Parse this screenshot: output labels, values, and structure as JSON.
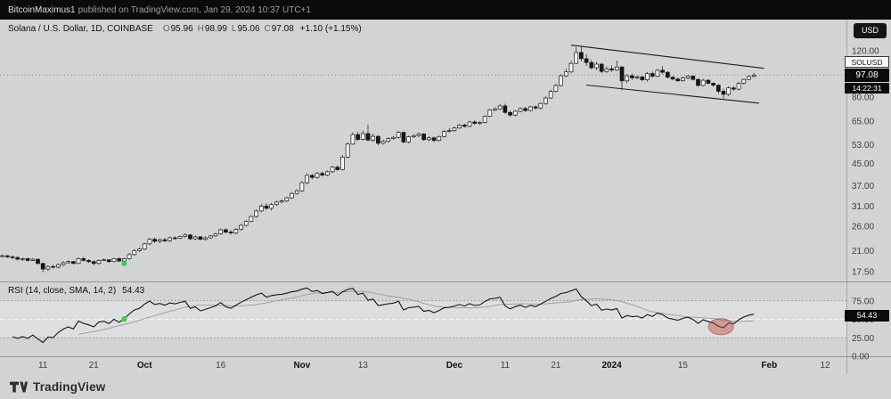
{
  "topbar": {
    "user": "BitcoinMaximus1",
    "rest": " published on TradingView.com, Jan 29, 2024 10:37 UTC+1",
    "currency_button": "USD"
  },
  "legend": {
    "title": "Solana / U.S. Dollar, 1D, COINBASE",
    "o": "O",
    "o_v": "95.96",
    "h": "H",
    "h_v": "98.99",
    "l": "L",
    "l_v": "95.06",
    "c": "C",
    "c_v": "97.08",
    "change": "+1.10 (+1.15%)"
  },
  "rsi_legend": {
    "title": "RSI (14, close, SMA, 14, 2)",
    "value": "54.43"
  },
  "price_axis": {
    "ticks": [
      "120.00",
      "80.00",
      "65.00",
      "53.00",
      "45.00",
      "37.00",
      "31.00",
      "26.00",
      "21.00",
      "17.50"
    ],
    "tick_values": [
      120,
      80,
      65,
      53,
      45,
      37,
      31,
      26,
      21,
      17.5
    ],
    "symbol_label": "SOLUSD",
    "last_price_label": "97.08",
    "countdown": "14:22:31"
  },
  "rsi_axis": {
    "ticks": [
      "75.00",
      "50.00",
      "25.00",
      "0.00"
    ],
    "tick_values": [
      75,
      50,
      25,
      0
    ],
    "value_label": "54.43"
  },
  "time_axis": {
    "labels": [
      {
        "text": "11",
        "i": 20
      },
      {
        "text": "21",
        "i": 30
      },
      {
        "text": "Oct",
        "i": 40,
        "major": true
      },
      {
        "text": "16",
        "i": 55
      },
      {
        "text": "Nov",
        "i": 71,
        "major": true
      },
      {
        "text": "13",
        "i": 83
      },
      {
        "text": "Dec",
        "i": 101,
        "major": true
      },
      {
        "text": "11",
        "i": 111
      },
      {
        "text": "21",
        "i": 121
      },
      {
        "text": "2024",
        "i": 132,
        "major": true
      },
      {
        "text": "15",
        "i": 146
      },
      {
        "text": "Feb",
        "i": 163,
        "major": true
      },
      {
        "text": "12",
        "i": 174
      }
    ]
  },
  "footer": {
    "brand": "TradingView"
  },
  "chart_data": {
    "type": "candlestick",
    "symbol": "Solana / U.S. Dollar",
    "ticker": "SOLUSD",
    "exchange": "COINBASE",
    "interval": "1D",
    "price_scale": "log",
    "ylim": [
      16,
      158
    ],
    "last": {
      "open": 95.96,
      "high": 98.99,
      "low": 95.06,
      "close": 97.08,
      "change": "+1.10",
      "change_pct": "+1.15%"
    },
    "rsi": {
      "length": 14,
      "source": "close",
      "ma_type": "SMA",
      "ma_length": 14,
      "current": 54.43
    },
    "warmup": 14,
    "start_date": "2023-08-22",
    "visible_start_date": "2023-09-05",
    "end_date": "2024-01-29",
    "colors": {
      "background": "#d2d3d5",
      "candle_up": "#fafafa",
      "candle_down": "#161616",
      "annotation_green": "#2fd24a",
      "annotation_red_fill": "rgba(186,62,49,0.42)"
    },
    "candles": [
      [
        21.6,
        21.9,
        21.2,
        21.4
      ],
      [
        21.4,
        21.6,
        20.8,
        21.0
      ],
      [
        21.0,
        21.2,
        20.5,
        20.7
      ],
      [
        20.7,
        21.1,
        20.6,
        20.9
      ],
      [
        20.9,
        21.0,
        20.3,
        20.5
      ],
      [
        20.5,
        20.9,
        20.4,
        20.6
      ],
      [
        20.6,
        20.8,
        20.1,
        20.3
      ],
      [
        20.3,
        20.8,
        20.2,
        20.6
      ],
      [
        20.6,
        20.7,
        20.2,
        20.4
      ],
      [
        20.4,
        20.6,
        19.9,
        20.1
      ],
      [
        20.1,
        20.3,
        19.6,
        19.8
      ],
      [
        19.8,
        20.2,
        19.7,
        20.0
      ],
      [
        20.0,
        20.3,
        19.9,
        20.1
      ],
      [
        20.1,
        20.2,
        19.7,
        19.9
      ],
      [
        19.9,
        20.2,
        19.5,
        19.8
      ],
      [
        19.8,
        20.0,
        19.3,
        19.5
      ],
      [
        19.5,
        19.8,
        19.2,
        19.6
      ],
      [
        19.6,
        19.8,
        19.1,
        19.3
      ],
      [
        19.3,
        19.7,
        19.2,
        19.5
      ],
      [
        19.5,
        19.6,
        18.6,
        18.8
      ],
      [
        18.8,
        18.9,
        17.4,
        17.9
      ],
      [
        17.9,
        18.5,
        17.6,
        18.3
      ],
      [
        18.3,
        18.6,
        18.0,
        18.2
      ],
      [
        18.2,
        18.8,
        18.0,
        18.6
      ],
      [
        18.6,
        19.2,
        18.4,
        18.9
      ],
      [
        18.9,
        19.3,
        18.8,
        19.1
      ],
      [
        19.1,
        19.2,
        18.6,
        18.8
      ],
      [
        18.8,
        19.8,
        18.7,
        19.6
      ],
      [
        19.6,
        19.9,
        19.1,
        19.3
      ],
      [
        19.3,
        19.5,
        18.9,
        19.1
      ],
      [
        19.1,
        19.3,
        18.5,
        18.8
      ],
      [
        18.8,
        19.5,
        18.6,
        19.3
      ],
      [
        19.3,
        19.6,
        19.2,
        19.4
      ],
      [
        19.4,
        19.5,
        18.9,
        19.1
      ],
      [
        19.1,
        19.7,
        19.0,
        19.6
      ],
      [
        19.6,
        19.8,
        19.0,
        19.2
      ],
      [
        19.2,
        19.8,
        19.1,
        19.6
      ],
      [
        19.6,
        20.6,
        19.4,
        20.3
      ],
      [
        20.3,
        21.3,
        20.1,
        21.0
      ],
      [
        21.0,
        21.6,
        20.8,
        21.3
      ],
      [
        21.3,
        22.5,
        21.1,
        22.3
      ],
      [
        22.3,
        23.5,
        22.1,
        23.2
      ],
      [
        23.2,
        23.6,
        22.5,
        22.8
      ],
      [
        22.8,
        23.4,
        22.4,
        23.1
      ],
      [
        23.1,
        23.5,
        22.6,
        22.9
      ],
      [
        22.9,
        23.8,
        22.7,
        23.5
      ],
      [
        23.5,
        23.8,
        23.1,
        23.4
      ],
      [
        23.4,
        24.0,
        23.2,
        23.8
      ],
      [
        23.8,
        24.4,
        23.6,
        24.1
      ],
      [
        24.1,
        24.3,
        23.1,
        23.3
      ],
      [
        23.3,
        24.0,
        23.0,
        23.7
      ],
      [
        23.7,
        23.9,
        23.0,
        23.2
      ],
      [
        23.2,
        23.8,
        22.9,
        23.5
      ],
      [
        23.5,
        24.1,
        23.3,
        23.9
      ],
      [
        23.9,
        24.5,
        23.7,
        24.3
      ],
      [
        24.3,
        25.5,
        24.1,
        25.2
      ],
      [
        25.2,
        25.6,
        24.4,
        24.7
      ],
      [
        24.7,
        25.1,
        24.2,
        24.5
      ],
      [
        24.5,
        25.6,
        24.2,
        25.3
      ],
      [
        25.3,
        26.5,
        25.0,
        26.2
      ],
      [
        26.2,
        27.4,
        25.9,
        27.1
      ],
      [
        27.1,
        28.6,
        26.9,
        28.3
      ],
      [
        28.3,
        30.1,
        28.0,
        29.7
      ],
      [
        29.7,
        31.6,
        29.4,
        31.0
      ],
      [
        31.0,
        31.8,
        30.0,
        30.4
      ],
      [
        30.4,
        31.9,
        29.8,
        31.4
      ],
      [
        31.4,
        32.5,
        31.0,
        32.1
      ],
      [
        32.1,
        32.8,
        31.8,
        32.4
      ],
      [
        32.4,
        33.6,
        32.0,
        33.3
      ],
      [
        33.3,
        35.0,
        33.0,
        34.6
      ],
      [
        34.6,
        35.9,
        34.2,
        35.4
      ],
      [
        35.4,
        38.5,
        35.1,
        38.0
      ],
      [
        38.0,
        41.2,
        37.5,
        40.5
      ],
      [
        40.5,
        41.0,
        39.2,
        39.8
      ],
      [
        39.8,
        41.7,
        39.4,
        41.2
      ],
      [
        41.2,
        41.9,
        40.1,
        40.6
      ],
      [
        40.6,
        42.3,
        40.2,
        41.8
      ],
      [
        41.8,
        44.0,
        41.3,
        43.5
      ],
      [
        43.5,
        44.2,
        42.1,
        42.6
      ],
      [
        42.6,
        48.3,
        42.3,
        47.5
      ],
      [
        47.5,
        54.0,
        47.0,
        53.2
      ],
      [
        53.2,
        58.9,
        52.8,
        57.8
      ],
      [
        57.8,
        59.2,
        54.6,
        55.4
      ],
      [
        55.4,
        59.8,
        54.9,
        58.3
      ],
      [
        58.3,
        63.0,
        54.5,
        55.1
      ],
      [
        55.1,
        58.2,
        54.3,
        56.9
      ],
      [
        56.9,
        57.5,
        52.6,
        53.6
      ],
      [
        53.6,
        55.3,
        52.9,
        54.5
      ],
      [
        54.5,
        56.4,
        53.8,
        55.8
      ],
      [
        55.8,
        57.1,
        55.2,
        56.4
      ],
      [
        56.4,
        59.6,
        55.9,
        58.9
      ],
      [
        58.9,
        59.3,
        53.4,
        54.2
      ],
      [
        54.2,
        57.3,
        53.6,
        56.7
      ],
      [
        56.7,
        58.1,
        56.1,
        57.3
      ],
      [
        57.3,
        58.9,
        56.6,
        58.1
      ],
      [
        58.1,
        58.5,
        54.7,
        55.3
      ],
      [
        55.3,
        57.0,
        54.5,
        56.2
      ],
      [
        56.2,
        56.8,
        54.1,
        54.9
      ],
      [
        54.9,
        57.4,
        54.3,
        56.8
      ],
      [
        56.8,
        60.1,
        56.4,
        59.4
      ],
      [
        59.4,
        61.2,
        58.7,
        59.8
      ],
      [
        59.8,
        61.9,
        59.2,
        61.2
      ],
      [
        61.2,
        63.4,
        60.7,
        62.8
      ],
      [
        62.8,
        63.6,
        61.4,
        62.1
      ],
      [
        62.1,
        65.2,
        61.6,
        64.5
      ],
      [
        64.5,
        65.4,
        62.9,
        63.7
      ],
      [
        63.7,
        64.9,
        62.8,
        64.2
      ],
      [
        64.2,
        68.4,
        63.7,
        67.8
      ],
      [
        67.8,
        72.3,
        67.2,
        71.5
      ],
      [
        71.5,
        73.4,
        70.8,
        72.3
      ],
      [
        72.3,
        75.3,
        71.6,
        74.2
      ],
      [
        74.2,
        75.6,
        69.3,
        70.1
      ],
      [
        70.1,
        71.2,
        67.5,
        68.5
      ],
      [
        68.5,
        71.5,
        67.8,
        70.8
      ],
      [
        70.8,
        73.3,
        70.1,
        72.5
      ],
      [
        72.5,
        73.6,
        70.4,
        71.3
      ],
      [
        71.3,
        74.2,
        70.8,
        73.6
      ],
      [
        73.6,
        74.5,
        71.9,
        72.9
      ],
      [
        72.9,
        76.5,
        71.8,
        75.8
      ],
      [
        75.8,
        80.6,
        74.9,
        79.5
      ],
      [
        79.5,
        85.3,
        78.8,
        84.2
      ],
      [
        84.2,
        90.1,
        83.5,
        88.6
      ],
      [
        88.6,
        97.8,
        87.9,
        96.5
      ],
      [
        96.5,
        102.5,
        95.3,
        99.8
      ],
      [
        99.8,
        109.8,
        98.6,
        107.5
      ],
      [
        107.5,
        123.6,
        106.8,
        118.2
      ],
      [
        118.2,
        124.2,
        109.4,
        112.0
      ],
      [
        112.0,
        116.5,
        105.2,
        108.3
      ],
      [
        108.3,
        110.8,
        101.9,
        103.5
      ],
      [
        103.5,
        109.2,
        101.2,
        106.8
      ],
      [
        106.8,
        107.9,
        98.7,
        100.2
      ],
      [
        100.2,
        104.8,
        98.9,
        102.5
      ],
      [
        102.5,
        105.6,
        99.8,
        101.5
      ],
      [
        101.5,
        110.2,
        100.6,
        104.2
      ],
      [
        104.2,
        105.1,
        85.1,
        92.3
      ],
      [
        92.3,
        97.9,
        90.4,
        96.5
      ],
      [
        96.5,
        98.2,
        93.2,
        94.8
      ],
      [
        94.8,
        96.8,
        93.6,
        95.6
      ],
      [
        95.6,
        96.3,
        92.1,
        93.2
      ],
      [
        93.2,
        99.6,
        91.7,
        98.4
      ],
      [
        98.4,
        100.2,
        94.9,
        96.1
      ],
      [
        96.1,
        102.4,
        95.4,
        101.2
      ],
      [
        101.2,
        104.9,
        97.9,
        99.5
      ],
      [
        99.5,
        100.3,
        94.1,
        95.3
      ],
      [
        95.3,
        96.4,
        92.8,
        93.8
      ],
      [
        93.8,
        94.9,
        91.5,
        92.4
      ],
      [
        92.4,
        95.8,
        91.6,
        94.6
      ],
      [
        94.6,
        97.3,
        93.4,
        96.2
      ],
      [
        96.2,
        97.1,
        92.6,
        93.5
      ],
      [
        93.5,
        94.2,
        87.6,
        88.7
      ],
      [
        88.7,
        93.9,
        87.9,
        92.8
      ],
      [
        92.8,
        93.6,
        89.5,
        90.4
      ],
      [
        90.4,
        91.2,
        87.8,
        88.9
      ],
      [
        88.9,
        89.6,
        82.4,
        84.3
      ],
      [
        84.3,
        86.2,
        79.2,
        82.1
      ],
      [
        82.1,
        87.9,
        80.9,
        86.8
      ],
      [
        86.8,
        88.3,
        84.6,
        85.9
      ],
      [
        85.9,
        91.4,
        84.9,
        90.3
      ],
      [
        90.3,
        94.2,
        89.3,
        93.5
      ],
      [
        93.5,
        96.8,
        92.8,
        95.96
      ],
      [
        95.96,
        98.99,
        95.06,
        97.08
      ]
    ],
    "annotations": {
      "channel_top": {
        "i1": 124,
        "p1": 126,
        "i2": 162,
        "p2": 103
      },
      "channel_bottom": {
        "i1": 127,
        "p1": 89,
        "i2": 161,
        "p2": 76
      },
      "green_dot_price": {
        "i": 36,
        "price": 18.8,
        "color": "#2fd24a"
      },
      "green_dot_rsi": {
        "i": 36,
        "color": "#2fd24a"
      },
      "red_ellipse": {
        "i": 153.5,
        "rsi": 40,
        "color": "rgba(186,62,49,0.42)"
      }
    }
  }
}
